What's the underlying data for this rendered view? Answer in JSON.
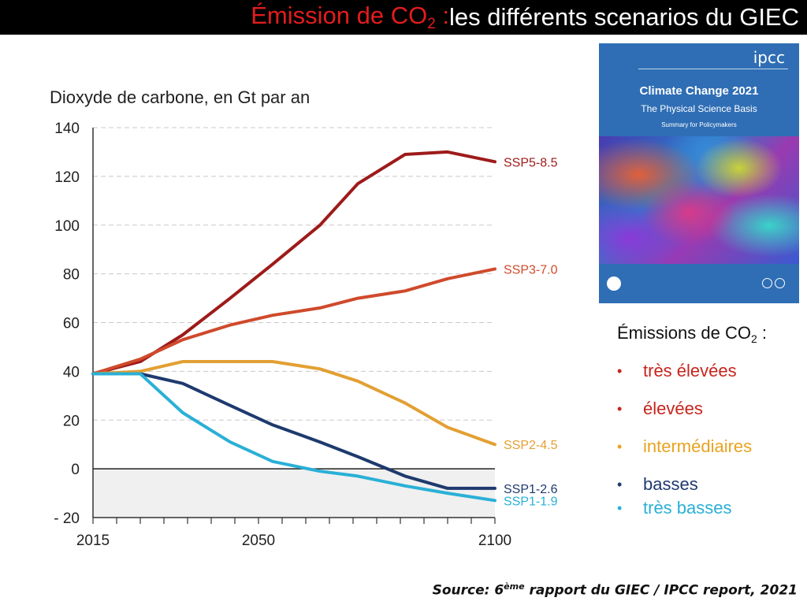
{
  "header": {
    "title_part1": "Émission de CO",
    "title_sub": "2",
    "title_part2": " : ",
    "title_part3": "les différents scenarios du GIEC"
  },
  "chart_data": {
    "type": "line",
    "title": "Dioxyde de carbone, en Gt par an",
    "xlabel": "",
    "ylabel": "Dioxyde de carbone, en Gt par an",
    "xlim": [
      2015,
      2100
    ],
    "ylim": [
      -20,
      140
    ],
    "yticks": [
      140,
      120,
      100,
      80,
      60,
      40,
      20,
      0,
      -20
    ],
    "ytick_labels": [
      "140",
      "120",
      "100",
      "80",
      "60",
      "40",
      "20",
      "0",
      "- 20"
    ],
    "xtick_labels": [
      {
        "x": 2015,
        "label": "2015"
      },
      {
        "x": 2050,
        "label": "2050"
      },
      {
        "x": 2100,
        "label": "2100"
      }
    ],
    "grid": "horizontal dashed",
    "series": [
      {
        "name": "SSP5-8.5",
        "color": "#9e1a1a",
        "points": [
          [
            2015,
            39
          ],
          [
            2025,
            44
          ],
          [
            2034,
            55
          ],
          [
            2044,
            70
          ],
          [
            2053,
            84
          ],
          [
            2063,
            100
          ],
          [
            2071,
            117
          ],
          [
            2081,
            129
          ],
          [
            2090,
            130
          ],
          [
            2100,
            126
          ]
        ]
      },
      {
        "name": "SSP3-7.0",
        "color": "#cf4a2c",
        "points": [
          [
            2015,
            39
          ],
          [
            2025,
            45
          ],
          [
            2034,
            53
          ],
          [
            2044,
            59
          ],
          [
            2053,
            63
          ],
          [
            2063,
            66
          ],
          [
            2071,
            70
          ],
          [
            2081,
            73
          ],
          [
            2090,
            78
          ],
          [
            2100,
            82
          ]
        ]
      },
      {
        "name": "SSP2-4.5",
        "color": "#e2a033",
        "points": [
          [
            2015,
            39
          ],
          [
            2025,
            40
          ],
          [
            2034,
            44
          ],
          [
            2044,
            44
          ],
          [
            2053,
            44
          ],
          [
            2063,
            41
          ],
          [
            2071,
            36
          ],
          [
            2081,
            27
          ],
          [
            2090,
            17
          ],
          [
            2100,
            10
          ]
        ]
      },
      {
        "name": "SSP1-2.6",
        "color": "#1e3a6e",
        "points": [
          [
            2015,
            39
          ],
          [
            2025,
            39
          ],
          [
            2034,
            35
          ],
          [
            2044,
            26
          ],
          [
            2053,
            18
          ],
          [
            2063,
            11
          ],
          [
            2071,
            5
          ],
          [
            2081,
            -3
          ],
          [
            2090,
            -8
          ],
          [
            2100,
            -8
          ]
        ]
      },
      {
        "name": "SSP1-1.9",
        "color": "#2ab0d6",
        "points": [
          [
            2015,
            39
          ],
          [
            2025,
            39
          ],
          [
            2034,
            23
          ],
          [
            2044,
            11
          ],
          [
            2053,
            3
          ],
          [
            2063,
            -1
          ],
          [
            2071,
            -3
          ],
          [
            2081,
            -7
          ],
          [
            2090,
            -10
          ],
          [
            2100,
            -13
          ]
        ]
      }
    ]
  },
  "report_cover": {
    "logo": "ipcc",
    "title": "Climate Change 2021",
    "subtitle": "The Physical Science Basis",
    "subtitle2": "Summary for Policymakers"
  },
  "legend": {
    "title_main": "Émissions de CO",
    "title_sub": "2",
    "title_end": " :",
    "bullet": "•",
    "items": [
      {
        "label": "très élevées",
        "color": "#c8241c"
      },
      {
        "label": "élevées",
        "color": "#c8241c"
      },
      {
        "label": "intermédiaires",
        "color": "#e8a320"
      },
      {
        "label": "basses",
        "color": "#1e3a6e"
      },
      {
        "label": "très basses",
        "color": "#2ab0d6"
      }
    ]
  },
  "source": {
    "prefix": "Source: 6",
    "sup": "ème",
    "suffix": " rapport du GIEC / IPCC report, 2021"
  }
}
